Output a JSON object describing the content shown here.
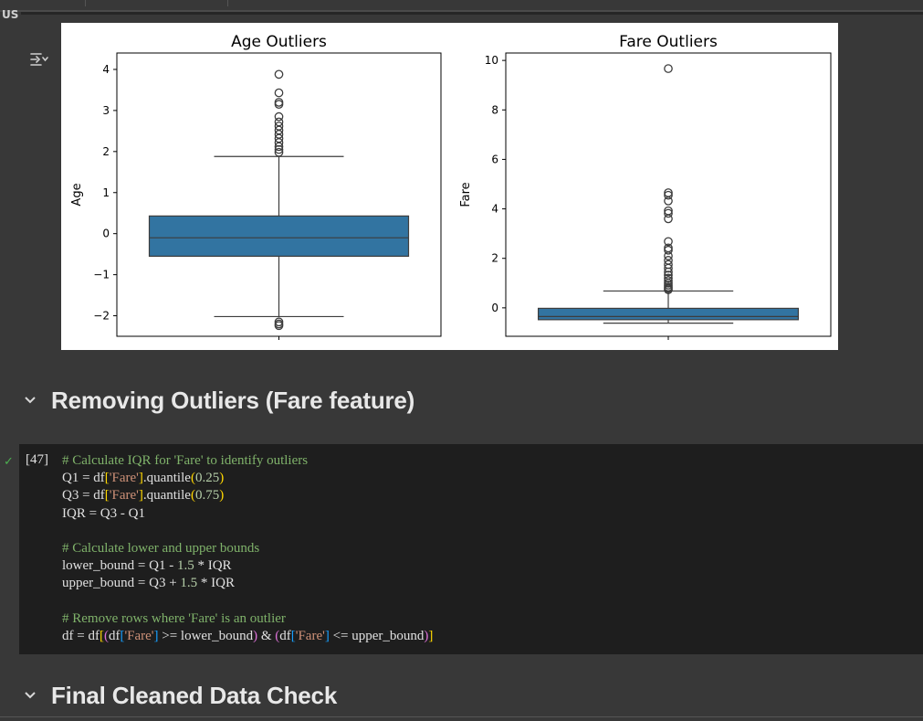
{
  "corner_label": "US",
  "output_toggle_icon": "output-toggle-icon",
  "chart_data": [
    {
      "type": "box",
      "title": "Age Outliers",
      "ylabel": "Age",
      "xlabel": "",
      "ylim": [
        -2.5,
        4.4
      ],
      "yticks": [
        4,
        3,
        2,
        1,
        0,
        -1,
        -2
      ],
      "ytick_labels": [
        "4",
        "3",
        "2",
        "1",
        "0",
        "−1",
        "−2"
      ],
      "box": {
        "q1": -0.55,
        "median": -0.1,
        "q3": 0.43,
        "whisker_low": -2.02,
        "whisker_high": 1.88
      },
      "outliers": [
        3.88,
        3.43,
        3.2,
        3.15,
        2.85,
        2.72,
        2.62,
        2.52,
        2.42,
        2.32,
        2.22,
        2.12,
        2.05,
        1.98,
        -2.15,
        -2.2,
        -2.24
      ],
      "color": "#3274a1",
      "grid": false
    },
    {
      "type": "box",
      "title": "Fare Outliers",
      "ylabel": "Fare",
      "xlabel": "",
      "ylim": [
        -1.15,
        10.3
      ],
      "yticks": [
        10,
        8,
        6,
        4,
        2,
        0
      ],
      "ytick_labels": [
        "10",
        "8",
        "6",
        "4",
        "2",
        "0"
      ],
      "box": {
        "q1": -0.48,
        "median": -0.35,
        "q3": -0.02,
        "whisker_low": -0.62,
        "whisker_high": 0.68
      },
      "outliers": [
        9.67,
        4.65,
        4.55,
        4.32,
        3.92,
        3.82,
        3.6,
        2.68,
        2.42,
        2.33,
        2.1,
        1.92,
        1.75,
        1.6,
        1.45,
        1.32,
        1.2,
        1.1,
        1.0,
        0.92,
        0.84,
        0.78,
        0.73
      ],
      "color": "#3274a1",
      "grid": false
    }
  ],
  "sections": [
    {
      "title": "Removing Outliers (Fare feature)"
    },
    {
      "title": "Final Cleaned Data Check"
    }
  ],
  "cell": {
    "exec_count": "[47]",
    "status": "✓"
  }
}
